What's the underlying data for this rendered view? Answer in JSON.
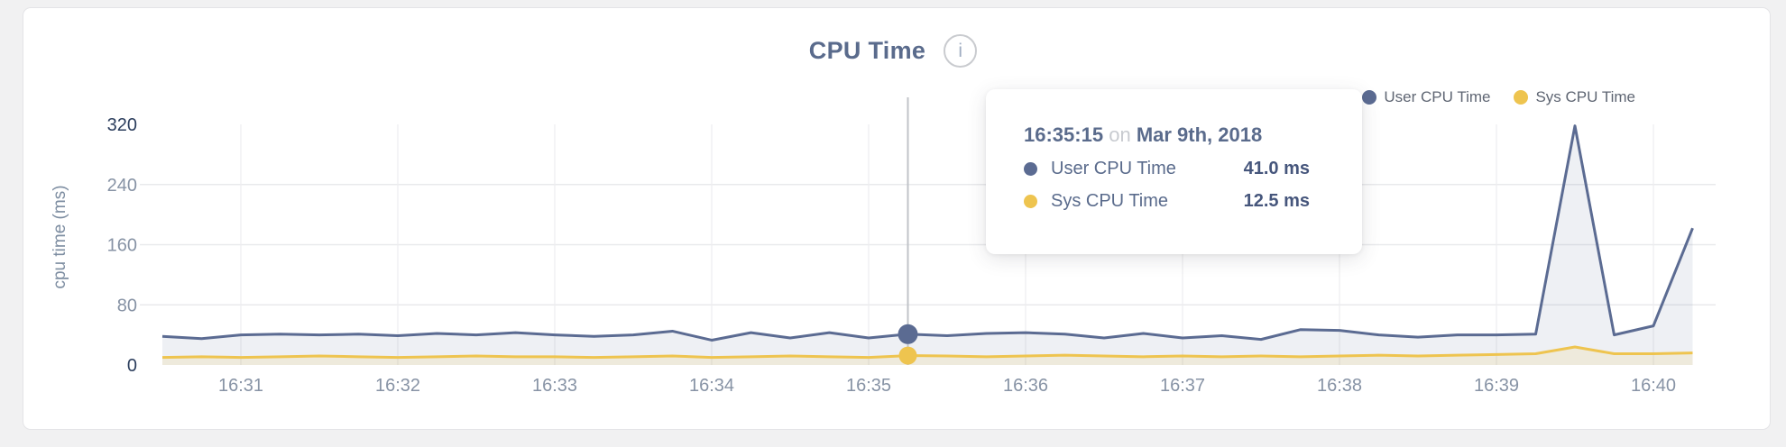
{
  "header": {
    "title": "CPU Time",
    "info_icon_glyph": "i"
  },
  "legend": {
    "items": [
      {
        "label": "User CPU Time",
        "color": "#5b6b92"
      },
      {
        "label": "Sys CPU Time",
        "color": "#eec44f"
      }
    ]
  },
  "tooltip": {
    "time": "16:35:15",
    "on_word": "on",
    "date": "Mar 9th, 2018",
    "rows": [
      {
        "label": "User CPU Time",
        "value": "41.0 ms",
        "color": "#5b6b92"
      },
      {
        "label": "Sys CPU Time",
        "value": "12.5 ms",
        "color": "#eec44f"
      }
    ]
  },
  "chart_data": {
    "type": "area",
    "title": "CPU Time",
    "xlabel": "",
    "ylabel": "cpu time (ms)",
    "ylim": [
      0,
      320
    ],
    "y_ticks": [
      0,
      80,
      160,
      240,
      320
    ],
    "y_ticks_dark": [
      0,
      320
    ],
    "grid_values": [
      80,
      160,
      240
    ],
    "x_tick_labels": [
      "16:31",
      "16:32",
      "16:33",
      "16:34",
      "16:35",
      "16:36",
      "16:37",
      "16:38",
      "16:39",
      "16:40"
    ],
    "legend_position": "top-right",
    "grid": true,
    "times": [
      "16:30:30",
      "16:30:45",
      "16:31:00",
      "16:31:15",
      "16:31:30",
      "16:31:45",
      "16:32:00",
      "16:32:15",
      "16:32:30",
      "16:32:45",
      "16:33:00",
      "16:33:15",
      "16:33:30",
      "16:33:45",
      "16:34:00",
      "16:34:15",
      "16:34:30",
      "16:34:45",
      "16:35:00",
      "16:35:15",
      "16:35:30",
      "16:35:45",
      "16:36:00",
      "16:36:15",
      "16:36:30",
      "16:36:45",
      "16:37:00",
      "16:37:15",
      "16:37:30",
      "16:37:45",
      "16:38:00",
      "16:38:15",
      "16:38:30",
      "16:38:45",
      "16:39:00",
      "16:39:15",
      "16:39:30",
      "16:39:45",
      "16:40:00",
      "16:40:15"
    ],
    "series": [
      {
        "name": "User CPU Time",
        "color": "#5b6b92",
        "fill": "rgba(91,107,146,0.10)",
        "values": [
          38,
          35,
          40,
          41,
          40,
          41,
          39,
          42,
          40,
          43,
          40,
          38,
          40,
          45,
          33,
          43,
          36,
          43,
          36,
          41,
          39,
          42,
          43,
          41,
          36,
          42,
          36,
          39,
          34,
          47,
          46,
          40,
          37,
          40,
          40,
          41,
          318,
          40,
          52,
          182
        ]
      },
      {
        "name": "Sys CPU Time",
        "color": "#eec44f",
        "fill": "rgba(238,196,79,0.14)",
        "values": [
          10,
          11,
          10,
          11,
          12,
          11,
          10,
          11,
          12,
          11,
          11,
          10,
          11,
          12,
          10,
          11,
          12,
          11,
          10,
          12.5,
          12,
          11,
          12,
          13,
          12,
          11,
          12,
          11,
          12,
          11,
          12,
          13,
          12,
          13,
          14,
          15,
          24,
          15,
          15,
          16
        ]
      }
    ],
    "hover": {
      "time": "16:35:15",
      "index": 19,
      "values": [
        41.0,
        12.5
      ]
    },
    "colors": {
      "grid": "#e9eaec",
      "vgrid": "#ededef",
      "axis_text": "#8793a5",
      "axis_text_dark": "#2c3e5d",
      "hover_line": "#c0c3c8"
    }
  }
}
